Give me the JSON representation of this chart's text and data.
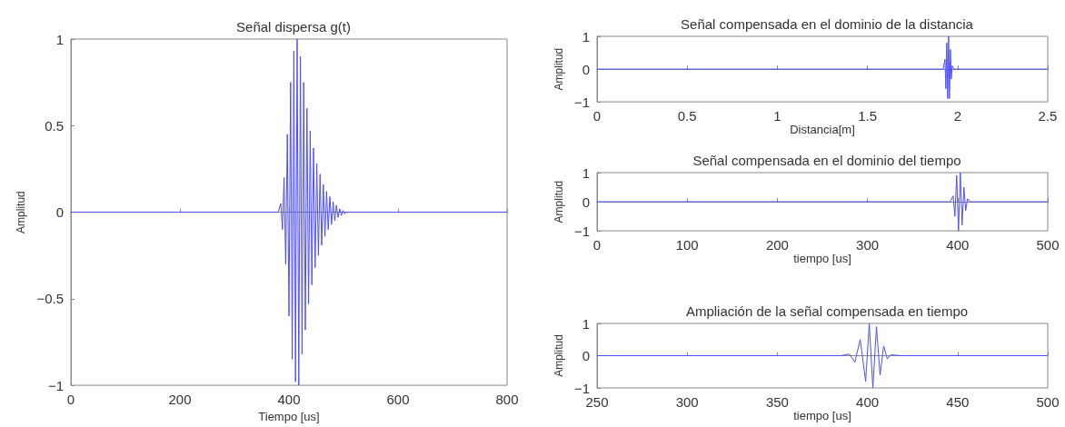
{
  "chart_data": [
    {
      "type": "line",
      "title": "Señal dispersa g(t)",
      "xlabel": "Tiempo [us]",
      "ylabel": "Amplitud",
      "color": "#4d4dff",
      "xlim": [
        0,
        800
      ],
      "ylim": [
        -1,
        1
      ],
      "xticks": [
        0,
        200,
        400,
        600,
        800
      ],
      "yticks": [
        -1,
        -0.5,
        0,
        0.5,
        1
      ],
      "x": [
        0,
        380,
        385,
        388,
        391,
        394,
        397,
        400,
        403,
        406,
        409,
        412,
        415,
        418,
        421,
        424,
        427,
        430,
        433,
        436,
        439,
        442,
        445,
        448,
        451,
        454,
        457,
        460,
        463,
        466,
        469,
        472,
        475,
        478,
        481,
        484,
        487,
        490,
        493,
        496,
        499,
        502,
        505,
        800
      ],
      "values": [
        0,
        0,
        0.05,
        -0.1,
        0.2,
        -0.3,
        0.45,
        -0.6,
        0.75,
        -0.85,
        0.93,
        -0.98,
        1,
        -1,
        0.9,
        -0.82,
        0.75,
        -0.68,
        0.6,
        -0.53,
        0.47,
        -0.42,
        0.37,
        -0.32,
        0.28,
        -0.25,
        0.22,
        -0.19,
        0.16,
        -0.14,
        0.12,
        -0.1,
        0.09,
        -0.07,
        0.06,
        -0.05,
        0.04,
        -0.03,
        0.02,
        -0.02,
        0.01,
        -0.01,
        0,
        0
      ]
    },
    {
      "type": "line",
      "title": "Señal compensada en el dominio de la distancia",
      "xlabel": "Distancia[m]",
      "ylabel": "Amplitud",
      "color": "#4d4dff",
      "xlim": [
        0,
        2.5
      ],
      "ylim": [
        -1,
        1
      ],
      "xticks": [
        0,
        0.5,
        1,
        1.5,
        2,
        2.5
      ],
      "yticks": [
        -1,
        0,
        1
      ],
      "x": [
        0,
        1.92,
        1.93,
        1.935,
        1.94,
        1.945,
        1.95,
        1.955,
        1.96,
        1.965,
        1.97,
        1.98,
        2.5
      ],
      "values": [
        0,
        0,
        0.3,
        -0.6,
        0.8,
        -0.9,
        1,
        -0.9,
        0.6,
        -0.3,
        0.1,
        0,
        0
      ]
    },
    {
      "type": "line",
      "title": "Señal compensada en el dominio del tiempo",
      "xlabel": "tiempo [us]",
      "ylabel": "Amplitud",
      "color": "#4d4dff",
      "xlim": [
        0,
        500
      ],
      "ylim": [
        -1,
        1
      ],
      "xticks": [
        0,
        100,
        200,
        300,
        400,
        500
      ],
      "yticks": [
        -1,
        0,
        1
      ],
      "x": [
        0,
        392,
        395,
        397,
        399,
        401,
        403,
        405,
        407,
        409,
        411,
        414,
        500
      ],
      "values": [
        0,
        0,
        0.2,
        -0.5,
        0.9,
        -1,
        1,
        -0.8,
        0.5,
        -0.3,
        0.1,
        0,
        0
      ]
    },
    {
      "type": "line",
      "title": "Ampliación de la señal compensada en tiempo",
      "xlabel": "tiempo [us]",
      "ylabel": "Amplitud",
      "color": "#4d4dff",
      "xlim": [
        250,
        500
      ],
      "ylim": [
        -1,
        1
      ],
      "xticks": [
        250,
        300,
        350,
        400,
        450,
        500
      ],
      "yticks": [
        -1,
        0,
        1
      ],
      "x": [
        250,
        385,
        390,
        393,
        396,
        399,
        401,
        403,
        405,
        407,
        409,
        411,
        413,
        418,
        500
      ],
      "values": [
        0,
        0,
        0.05,
        -0.2,
        0.5,
        -0.8,
        1,
        -1,
        0.9,
        -0.6,
        0.3,
        -0.1,
        0.03,
        0,
        0
      ]
    }
  ]
}
